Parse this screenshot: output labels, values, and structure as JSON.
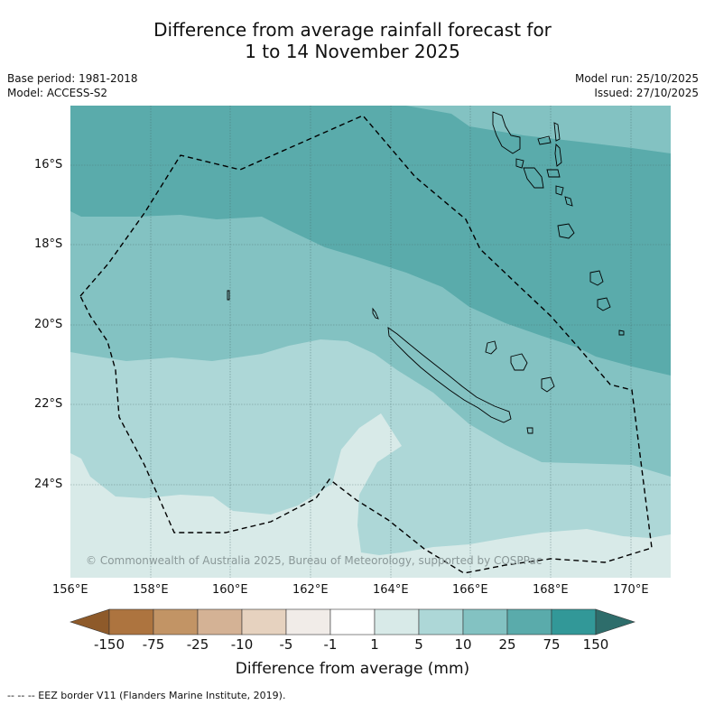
{
  "title": {
    "line1": "Difference from average rainfall forecast for",
    "line2": "1 to 14 November 2025"
  },
  "meta": {
    "base_period": "Base period: 1981-2018",
    "model": "Model: ACCESS-S2",
    "model_run": "Model run: 25/10/2025",
    "issued": "Issued: 27/10/2025"
  },
  "map": {
    "lat_labels": [
      "16°S",
      "18°S",
      "20°S",
      "22°S",
      "24°S"
    ],
    "lon_labels": [
      "156°E",
      "158°E",
      "160°E",
      "162°E",
      "164°E",
      "166°E",
      "168°E",
      "170°E"
    ],
    "copyright": "© Commonwealth of Australia 2025, Bureau of Meteorology, supported by COSPPac",
    "forecast_category_by_region": {
      "north": "25 to 75",
      "central_band": "10 to 25",
      "south_central": "5 to 10",
      "south_tongue": "1 to 5"
    }
  },
  "colorbar": {
    "title": "Difference from average (mm)",
    "ticks": [
      "-150",
      "-75",
      "-25",
      "-10",
      "-5",
      "-1",
      "1",
      "5",
      "10",
      "25",
      "75",
      "150"
    ],
    "colors": [
      "#8e5a2a",
      "#ad743f",
      "#c29465",
      "#d4b295",
      "#e6d2bf",
      "#f1ece8",
      "#ffffff",
      "#d8eae8",
      "#add7d7",
      "#83c2c2",
      "#5aabab",
      "#329898",
      "#2e6d6b"
    ]
  },
  "footer": "-- -- -- EEZ border V11 (Flanders Marine Institute, 2019)."
}
